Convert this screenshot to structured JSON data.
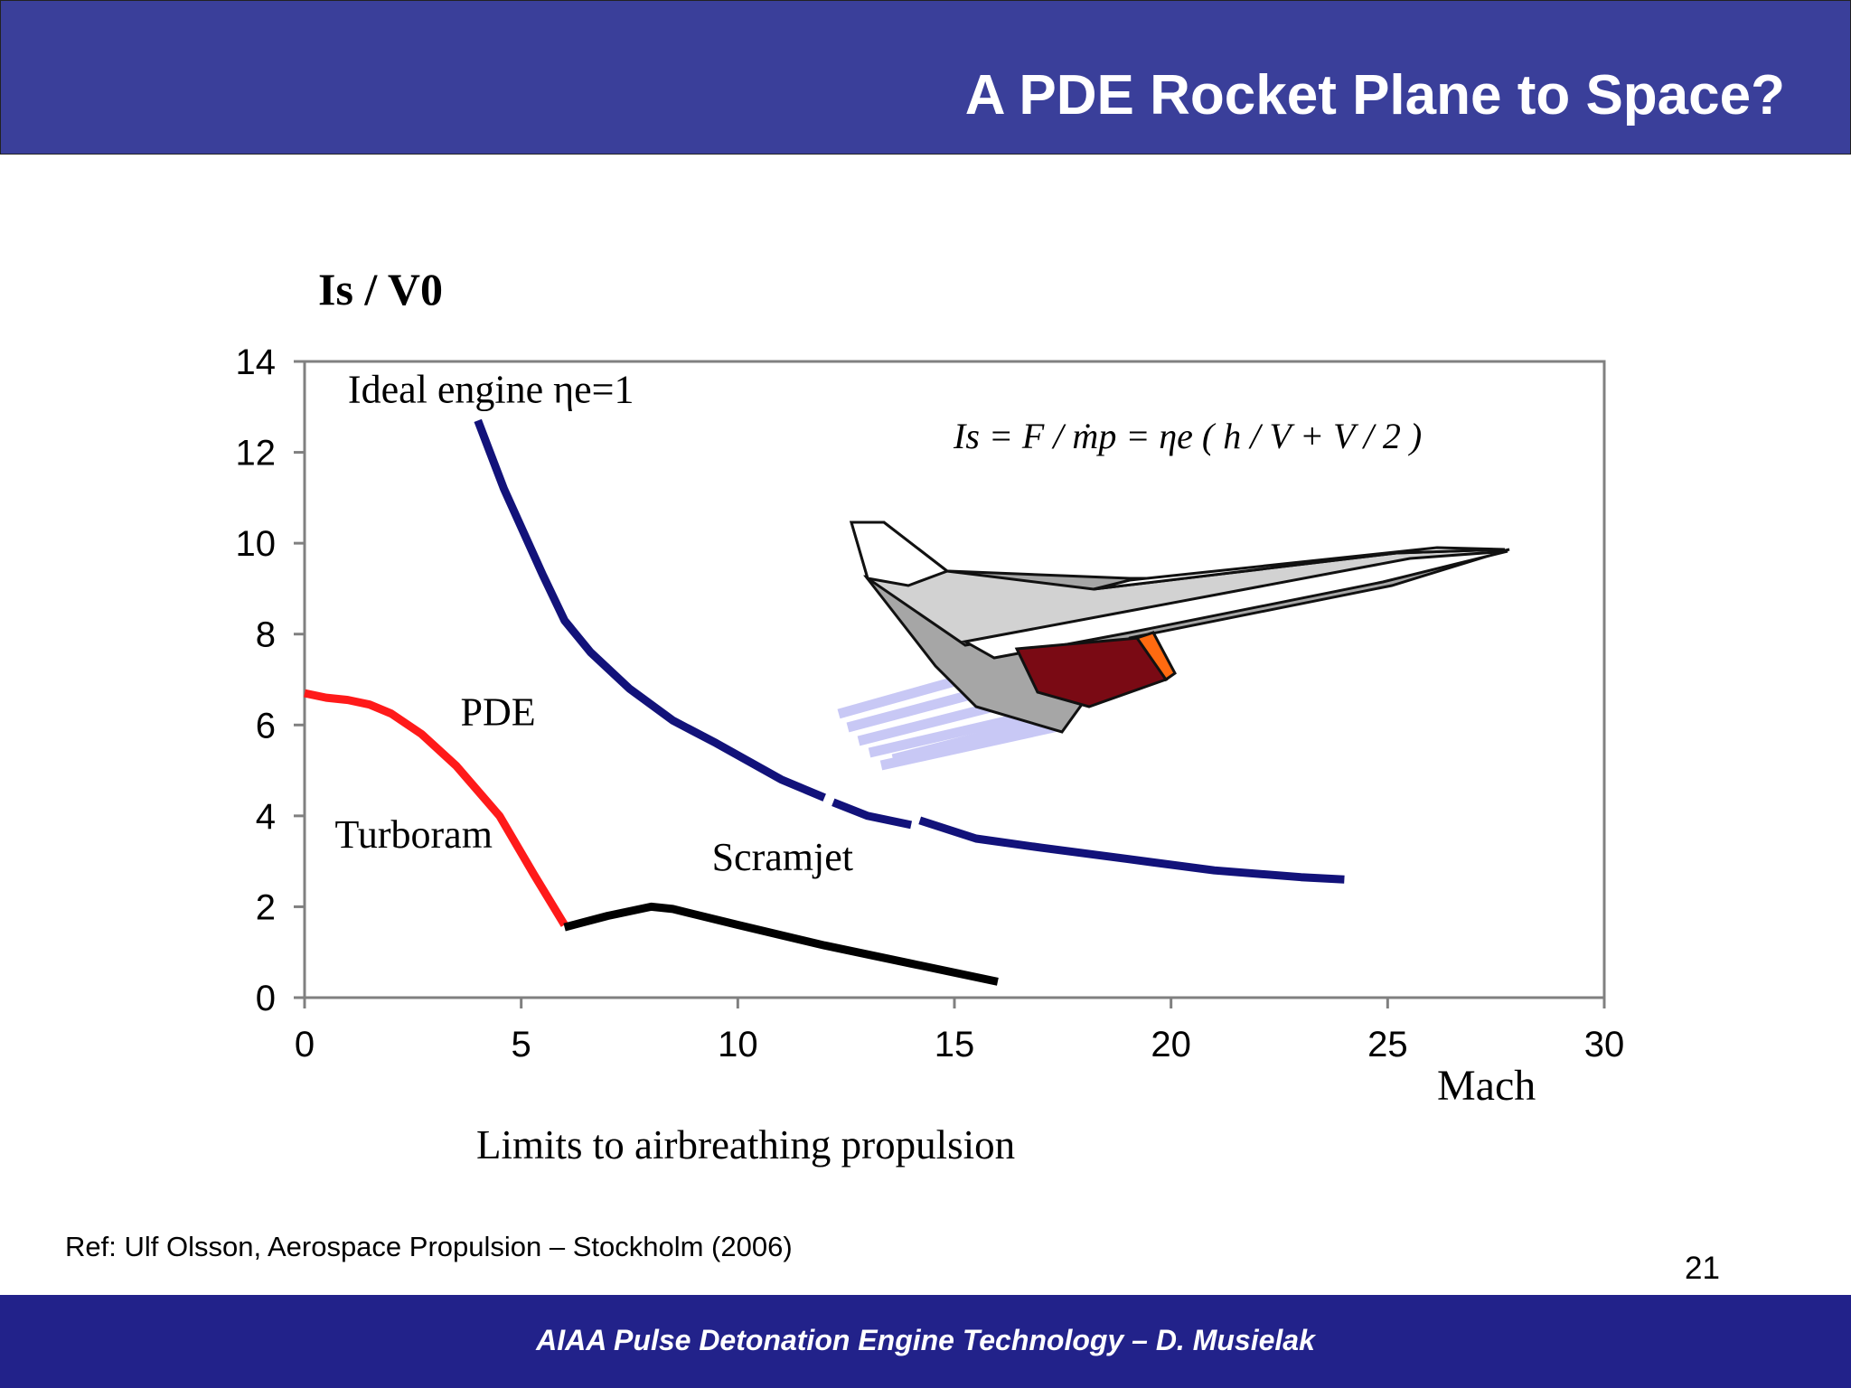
{
  "slide": {
    "title": "A PDE Rocket Plane to Space?",
    "reference": "Ref: Ulf Olsson, Aerospace Propulsion – Stockholm (2006)",
    "page_number": "21",
    "footer": "AIAA Pulse Detonation Engine Technology – D. Musielak",
    "colors": {
      "header": "#3a3f9a",
      "footer": "#22228a"
    }
  },
  "chart_data": {
    "type": "line",
    "ylabel": "Is / V0",
    "xlabel": "Mach",
    "caption": "Limits to airbreathing propulsion",
    "equation": "Is = F / ṁp = ηe ( h / V + V / 2 )",
    "xlim": [
      0,
      30
    ],
    "ylim": [
      0,
      14
    ],
    "x_ticks": [
      "0",
      "5",
      "10",
      "15",
      "20",
      "25",
      "30"
    ],
    "y_ticks": [
      "0",
      "2",
      "4",
      "6",
      "8",
      "10",
      "12",
      "14"
    ],
    "grid": false,
    "annotations": [
      {
        "text": "Ideal engine ηe=1",
        "x": 1,
        "y": 13.1
      },
      {
        "text": "PDE",
        "x": 3.6,
        "y": 6.0
      },
      {
        "text": "Turboram",
        "x": 0.7,
        "y": 3.3
      },
      {
        "text": "Scramjet",
        "x": 9.4,
        "y": 2.8
      }
    ],
    "series": [
      {
        "name": "Ideal engine",
        "color": "#12127a",
        "x": [
          4.0,
          4.6,
          5.5,
          6.0,
          6.6,
          7.5,
          8.5,
          9.5,
          11.0,
          12.0
        ],
        "y": [
          12.7,
          11.2,
          9.3,
          8.3,
          7.6,
          6.8,
          6.1,
          5.6,
          4.8,
          4.4
        ]
      },
      {
        "name": "Ideal engine",
        "color": "#12127a",
        "x": [
          12.2,
          13.0,
          14.0
        ],
        "y": [
          4.3,
          4.0,
          3.8
        ]
      },
      {
        "name": "Ideal engine",
        "color": "#12127a",
        "x": [
          14.2,
          15.5,
          17.0,
          19.0,
          21.0,
          23.0,
          24.0
        ],
        "y": [
          3.9,
          3.5,
          3.3,
          3.05,
          2.8,
          2.65,
          2.6
        ]
      },
      {
        "name": "Turboram",
        "color": "#ff1a1a",
        "x": [
          0,
          0.5,
          1.0,
          1.5,
          2.0,
          2.7,
          3.5,
          4.5,
          5.3,
          6.0
        ],
        "y": [
          6.7,
          6.6,
          6.55,
          6.45,
          6.25,
          5.8,
          5.1,
          4.0,
          2.7,
          1.6
        ]
      },
      {
        "name": "Scramjet",
        "color": "#000000",
        "x": [
          6.0,
          7.0,
          8.0,
          8.5,
          10.0,
          12.0,
          14.0,
          16.0
        ],
        "y": [
          1.55,
          1.8,
          2.0,
          1.95,
          1.6,
          1.15,
          0.75,
          0.35
        ]
      }
    ]
  }
}
